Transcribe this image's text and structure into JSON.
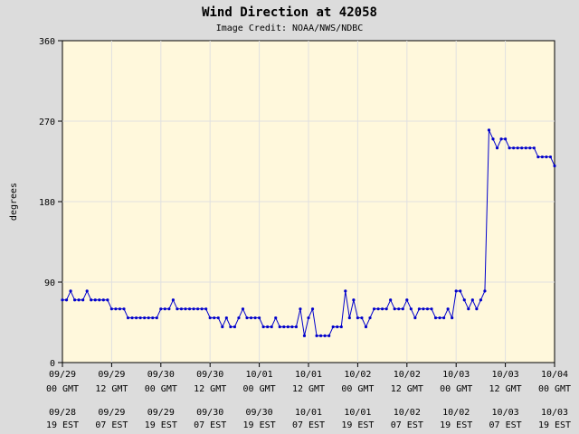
{
  "chart_data": {
    "type": "line",
    "title": "Wind Direction at 42058",
    "subtitle": "Image Credit: NOAA/NWS/NDBC",
    "ylabel": "degrees",
    "ylim": [
      0,
      360
    ],
    "yticks": [
      "0",
      "90",
      "180",
      "270",
      "360"
    ],
    "xlim_hours": [
      0,
      120
    ],
    "grid": true,
    "colors": {
      "line": "#0000cc",
      "plot_bg": "#fff8dc",
      "page_bg": "#dcdcdc",
      "grid": "#e0e0e0"
    },
    "x_ticks": [
      {
        "gmt_date": "09/29",
        "gmt_time": "00 GMT",
        "est_date": "09/28",
        "est_time": "19 EST"
      },
      {
        "gmt_date": "09/29",
        "gmt_time": "12 GMT",
        "est_date": "09/29",
        "est_time": "07 EST"
      },
      {
        "gmt_date": "09/30",
        "gmt_time": "00 GMT",
        "est_date": "09/29",
        "est_time": "19 EST"
      },
      {
        "gmt_date": "09/30",
        "gmt_time": "12 GMT",
        "est_date": "09/30",
        "est_time": "07 EST"
      },
      {
        "gmt_date": "10/01",
        "gmt_time": "00 GMT",
        "est_date": "09/30",
        "est_time": "19 EST"
      },
      {
        "gmt_date": "10/01",
        "gmt_time": "12 GMT",
        "est_date": "10/01",
        "est_time": "07 EST"
      },
      {
        "gmt_date": "10/02",
        "gmt_time": "00 GMT",
        "est_date": "10/01",
        "est_time": "19 EST"
      },
      {
        "gmt_date": "10/02",
        "gmt_time": "12 GMT",
        "est_date": "10/02",
        "est_time": "07 EST"
      },
      {
        "gmt_date": "10/03",
        "gmt_time": "00 GMT",
        "est_date": "10/02",
        "est_time": "19 EST"
      },
      {
        "gmt_date": "10/03",
        "gmt_time": "12 GMT",
        "est_date": "10/03",
        "est_time": "07 EST"
      },
      {
        "gmt_date": "10/04",
        "gmt_time": "00 GMT",
        "est_date": "10/03",
        "est_time": "19 EST"
      }
    ],
    "series": [
      {
        "values": [
          [
            0,
            70
          ],
          [
            1,
            70
          ],
          [
            2,
            80
          ],
          [
            3,
            70
          ],
          [
            4,
            70
          ],
          [
            5,
            70
          ],
          [
            6,
            80
          ],
          [
            7,
            70
          ],
          [
            8,
            70
          ],
          [
            9,
            70
          ],
          [
            10,
            70
          ],
          [
            11,
            70
          ],
          [
            12,
            60
          ],
          [
            13,
            60
          ],
          [
            14,
            60
          ],
          [
            15,
            60
          ],
          [
            16,
            50
          ],
          [
            17,
            50
          ],
          [
            18,
            50
          ],
          [
            19,
            50
          ],
          [
            20,
            50
          ],
          [
            21,
            50
          ],
          [
            22,
            50
          ],
          [
            23,
            50
          ],
          [
            24,
            60
          ],
          [
            25,
            60
          ],
          [
            26,
            60
          ],
          [
            27,
            70
          ],
          [
            28,
            60
          ],
          [
            29,
            60
          ],
          [
            30,
            60
          ],
          [
            31,
            60
          ],
          [
            32,
            60
          ],
          [
            33,
            60
          ],
          [
            34,
            60
          ],
          [
            35,
            60
          ],
          [
            36,
            50
          ],
          [
            37,
            50
          ],
          [
            38,
            50
          ],
          [
            39,
            40
          ],
          [
            40,
            50
          ],
          [
            41,
            40
          ],
          [
            42,
            40
          ],
          [
            43,
            50
          ],
          [
            44,
            60
          ],
          [
            45,
            50
          ],
          [
            46,
            50
          ],
          [
            47,
            50
          ],
          [
            48,
            50
          ],
          [
            49,
            40
          ],
          [
            50,
            40
          ],
          [
            51,
            40
          ],
          [
            52,
            50
          ],
          [
            53,
            40
          ],
          [
            54,
            40
          ],
          [
            55,
            40
          ],
          [
            56,
            40
          ],
          [
            57,
            40
          ],
          [
            58,
            60
          ],
          [
            59,
            30
          ],
          [
            60,
            50
          ],
          [
            61,
            60
          ],
          [
            62,
            30
          ],
          [
            63,
            30
          ],
          [
            64,
            30
          ],
          [
            65,
            30
          ],
          [
            66,
            40
          ],
          [
            67,
            40
          ],
          [
            68,
            40
          ],
          [
            69,
            80
          ],
          [
            70,
            50
          ],
          [
            71,
            70
          ],
          [
            72,
            50
          ],
          [
            73,
            50
          ],
          [
            74,
            40
          ],
          [
            75,
            50
          ],
          [
            76,
            60
          ],
          [
            77,
            60
          ],
          [
            78,
            60
          ],
          [
            79,
            60
          ],
          [
            80,
            70
          ],
          [
            81,
            60
          ],
          [
            82,
            60
          ],
          [
            83,
            60
          ],
          [
            84,
            70
          ],
          [
            85,
            60
          ],
          [
            86,
            50
          ],
          [
            87,
            60
          ],
          [
            88,
            60
          ],
          [
            89,
            60
          ],
          [
            90,
            60
          ],
          [
            91,
            50
          ],
          [
            92,
            50
          ],
          [
            93,
            50
          ],
          [
            94,
            60
          ],
          [
            95,
            50
          ],
          [
            96,
            80
          ],
          [
            97,
            80
          ],
          [
            98,
            70
          ],
          [
            99,
            60
          ],
          [
            100,
            70
          ],
          [
            101,
            60
          ],
          [
            102,
            70
          ],
          [
            103,
            80
          ],
          [
            104,
            260
          ],
          [
            105,
            250
          ],
          [
            106,
            240
          ],
          [
            107,
            250
          ],
          [
            108,
            250
          ],
          [
            109,
            240
          ],
          [
            110,
            240
          ],
          [
            111,
            240
          ],
          [
            112,
            240
          ],
          [
            113,
            240
          ],
          [
            114,
            240
          ],
          [
            115,
            240
          ],
          [
            116,
            230
          ],
          [
            117,
            230
          ],
          [
            118,
            230
          ],
          [
            119,
            230
          ],
          [
            120,
            220
          ]
        ]
      }
    ]
  }
}
